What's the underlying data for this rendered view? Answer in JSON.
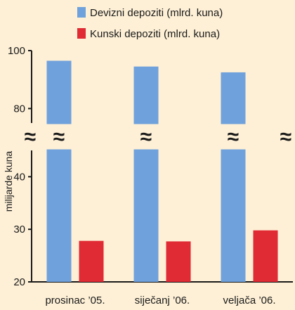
{
  "chart_data": {
    "type": "bar",
    "categories": [
      "prosinac ’05.",
      "siječanj ’06.",
      "veljača ’06."
    ],
    "series": [
      {
        "name": "Devizni depoziti (mlrd. kuna)",
        "color": "#6fa1dc",
        "values": [
          96.5,
          94.5,
          92.5
        ]
      },
      {
        "name": "Kunski depoziti (mlrd. kuna)",
        "color": "#e02a34",
        "values": [
          27.8,
          27.7,
          29.8
        ]
      }
    ],
    "ylabel": "milijarde kuna",
    "axis_break": "≈",
    "y_segments": [
      {
        "ylim": [
          20,
          45
        ],
        "ticks": [
          20,
          30,
          40
        ]
      },
      {
        "ylim": [
          75,
          100
        ],
        "ticks": [
          80,
          100
        ]
      }
    ],
    "legend_position": "top",
    "grid": false
  }
}
